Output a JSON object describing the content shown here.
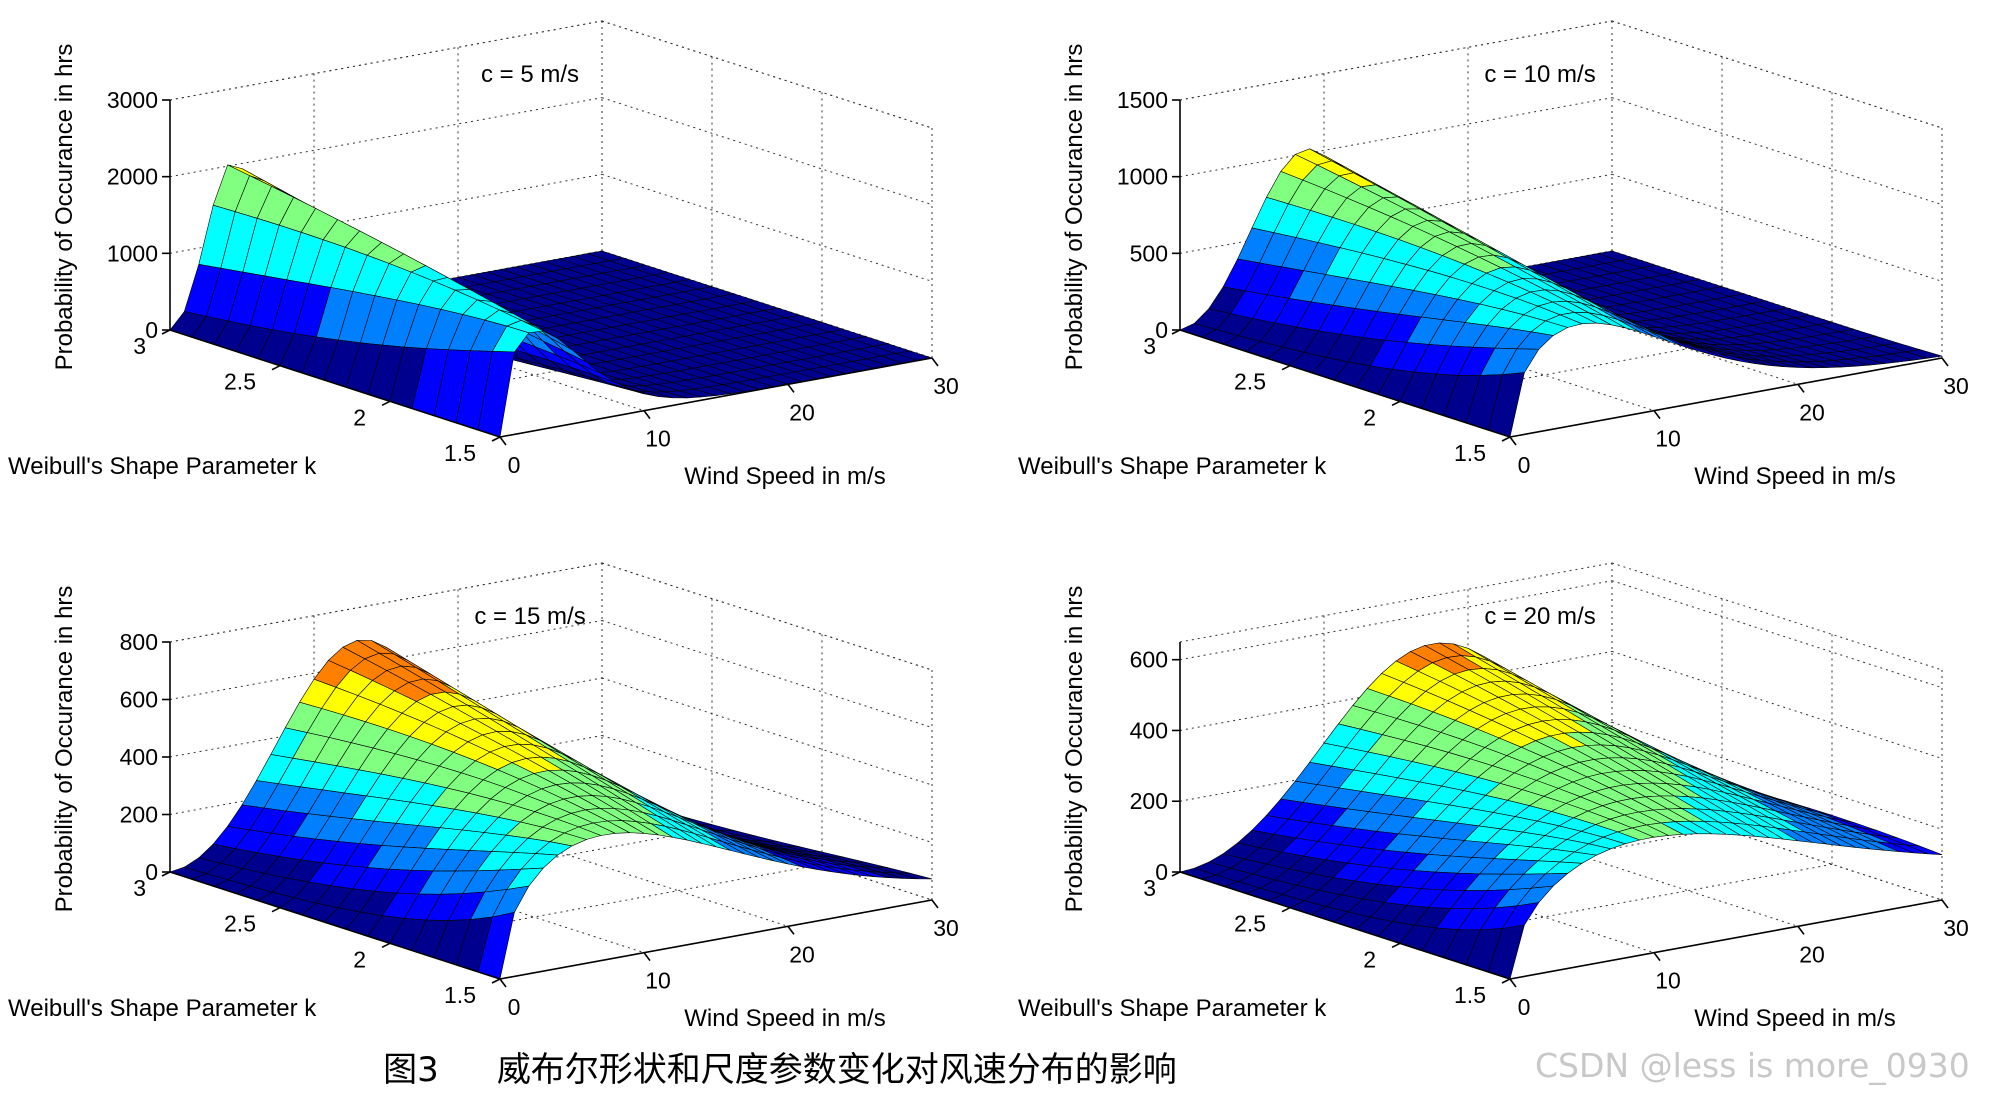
{
  "figure": {
    "caption_number": "图3",
    "caption_text": "威布尔形状和尺度参数变化对风速分布的影响",
    "watermark": "CSDN @less is more_0930",
    "colormap": [
      "#00008f",
      "#0000ff",
      "#0080ff",
      "#00ffff",
      "#80ff80",
      "#ffff00",
      "#ff8000",
      "#ff0000",
      "#800000"
    ]
  },
  "chart_data": [
    {
      "type": "surface",
      "title": "c = 5 m/s",
      "scale_c": 5,
      "xlabel": "Wind Speed in m/s",
      "ylabel": "Weibull's Shape Parameter k",
      "zlabel": "Probability of Occurance in hrs",
      "x_range": [
        0,
        30
      ],
      "y_range": [
        1.5,
        3
      ],
      "zlim": [
        0,
        3000
      ],
      "x_ticks": [
        "0",
        "10",
        "20",
        "30"
      ],
      "y_ticks": [
        "1.5",
        "2",
        "2.5",
        "3"
      ],
      "z_ticks": [
        "0",
        "1000",
        "2000",
        "3000"
      ],
      "z_tick_values": [
        0,
        1000,
        2000,
        3000
      ],
      "hours_scale": 8760,
      "grid": true
    },
    {
      "type": "surface",
      "title": "c = 10 m/s",
      "scale_c": 10,
      "xlabel": "Wind Speed in m/s",
      "ylabel": "Weibull's Shape Parameter k",
      "zlabel": "Probability of Occurance in hrs",
      "x_range": [
        0,
        30
      ],
      "y_range": [
        1.5,
        3
      ],
      "zlim": [
        0,
        1500
      ],
      "x_ticks": [
        "0",
        "10",
        "20",
        "30"
      ],
      "y_ticks": [
        "1.5",
        "2",
        "2.5",
        "3"
      ],
      "z_ticks": [
        "0",
        "500",
        "1000",
        "1500"
      ],
      "z_tick_values": [
        0,
        500,
        1000,
        1500
      ],
      "hours_scale": 8760,
      "grid": true
    },
    {
      "type": "surface",
      "title": "c = 15 m/s",
      "scale_c": 15,
      "xlabel": "Wind Speed in m/s",
      "ylabel": "Weibull's Shape Parameter k",
      "zlabel": "Probability of Occurance in hrs",
      "x_range": [
        0,
        30
      ],
      "y_range": [
        1.5,
        3
      ],
      "zlim": [
        0,
        800
      ],
      "x_ticks": [
        "0",
        "10",
        "20",
        "30"
      ],
      "y_ticks": [
        "1.5",
        "2",
        "2.5",
        "3"
      ],
      "z_ticks": [
        "0",
        "200",
        "400",
        "600",
        "800"
      ],
      "z_tick_values": [
        0,
        200,
        400,
        600,
        800
      ],
      "hours_scale": 8760,
      "grid": true
    },
    {
      "type": "surface",
      "title": "c = 20 m/s",
      "scale_c": 20,
      "xlabel": "Wind Speed in m/s",
      "ylabel": "Weibull's Shape Parameter k",
      "zlabel": "Probability of Occurance in hrs",
      "x_range": [
        0,
        30
      ],
      "y_range": [
        1.5,
        3
      ],
      "zlim": [
        0,
        650
      ],
      "x_ticks": [
        "0",
        "10",
        "20",
        "30"
      ],
      "y_ticks": [
        "1.5",
        "2",
        "2.5",
        "3"
      ],
      "z_ticks": [
        "0",
        "200",
        "400",
        "600"
      ],
      "z_tick_values": [
        0,
        200,
        400,
        600
      ],
      "hours_scale": 8760,
      "grid": true
    }
  ]
}
